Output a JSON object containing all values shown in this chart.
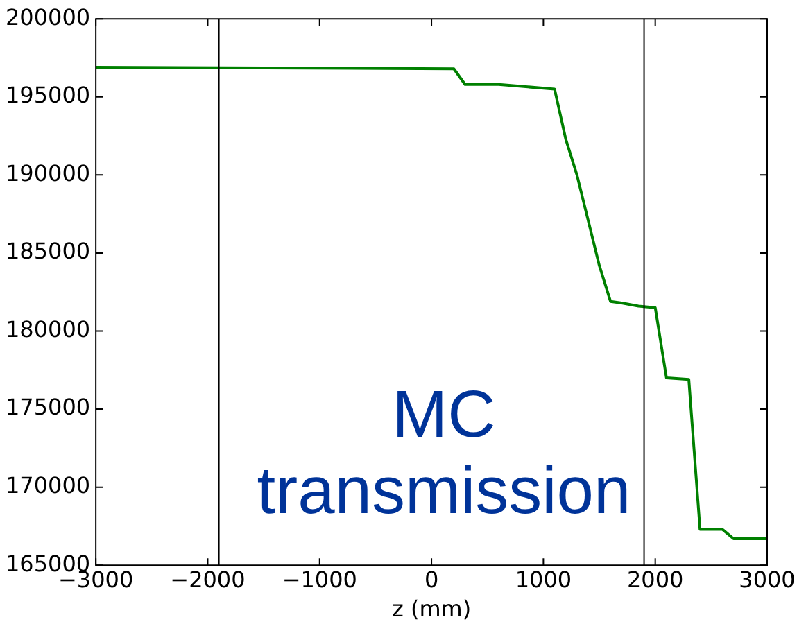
{
  "chart_data": {
    "type": "line",
    "xlabel": "z (mm)",
    "x": [
      -3000,
      200,
      300,
      600,
      1100,
      1200,
      1300,
      1400,
      1500,
      1600,
      1700,
      1850,
      2000,
      2100,
      2300,
      2400,
      2600,
      2700,
      3000
    ],
    "series": [
      {
        "color": "#008000",
        "values": [
          196900,
          196800,
          195800,
          195800,
          195500,
          192300,
          190000,
          187100,
          184200,
          181900,
          181800,
          181600,
          181500,
          177000,
          176900,
          167300,
          167300,
          166700,
          166700
        ]
      }
    ],
    "xlim": [
      -3000,
      3000
    ],
    "xticks": [
      {
        "value": -3000,
        "label": "−3000"
      },
      {
        "value": -2000,
        "label": "−2000"
      },
      {
        "value": -1000,
        "label": "−1000"
      },
      0,
      1000,
      2000,
      3000
    ],
    "ylim": [
      165000,
      200000
    ],
    "yticks": [
      165000,
      170000,
      175000,
      180000,
      185000,
      190000,
      195000,
      200000
    ],
    "ref_lines": [
      {
        "axis": "x",
        "value": -1900,
        "label": null,
        "color": "#000000"
      },
      {
        "axis": "x",
        "value": 1900,
        "label": null,
        "color": "#000000"
      }
    ],
    "annotations": [
      "MC transmission"
    ],
    "grid": false,
    "legend": false,
    "marker": "none",
    "line_style": "solid"
  }
}
